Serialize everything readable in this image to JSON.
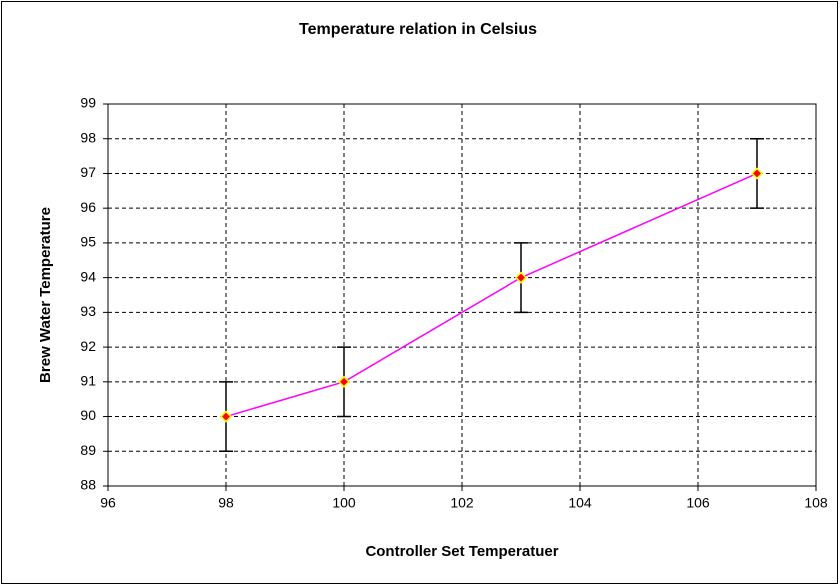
{
  "chart_data": {
    "type": "line",
    "title": "Temperature relation in Celsius",
    "x_label": "Controller Set Temperatuer",
    "y_label": "Brew Water Temperature",
    "x": [
      98,
      100,
      103,
      107
    ],
    "series": [
      {
        "color": "#ff00ff",
        "marker_color": "#ff0000",
        "marker_edge": "#ffff00",
        "values": [
          90,
          91,
          94,
          97
        ],
        "errors": [
          1,
          1,
          1,
          1
        ]
      }
    ],
    "xlim": [
      96,
      108
    ],
    "xticks": [
      96,
      98,
      100,
      102,
      104,
      106,
      108
    ],
    "ylim": [
      88,
      99
    ],
    "yticks": [
      88,
      89,
      90,
      91,
      92,
      93,
      94,
      95,
      96,
      97,
      98,
      99
    ],
    "grid": true
  }
}
